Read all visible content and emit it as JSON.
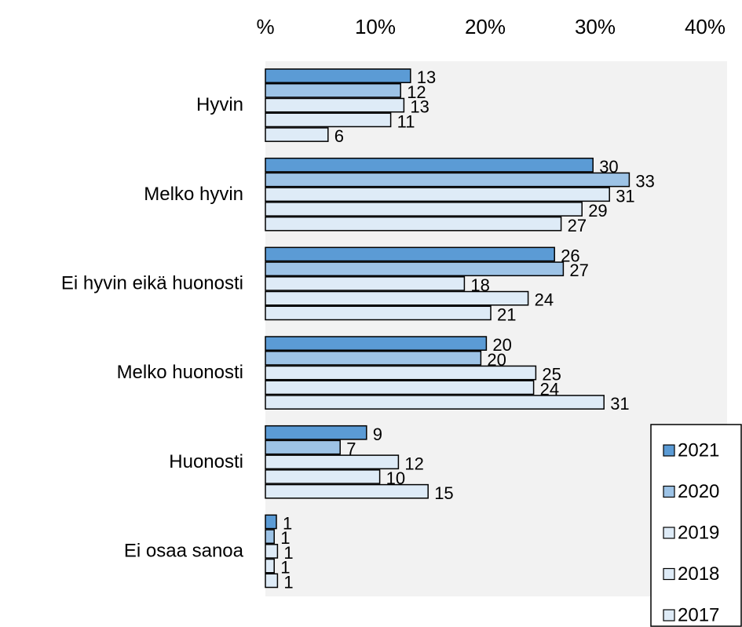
{
  "chart_data": {
    "type": "bar",
    "orientation": "horizontal",
    "categories": [
      "Hyvin",
      "Melko hyvin",
      "Ei hyvin eikä huonosti",
      "Melko huonosti",
      "Huonosti",
      "Ei osaa sanoa"
    ],
    "series": [
      {
        "name": "2021",
        "color": "#5b9bd5",
        "values": [
          13.2,
          29.8,
          26.3,
          20.1,
          9.2,
          1.0
        ],
        "value_labels": [
          "13",
          "30",
          "26",
          "20",
          "9",
          "1"
        ]
      },
      {
        "name": "2020",
        "color": "#9dc3e6",
        "values": [
          12.3,
          33.1,
          27.1,
          19.6,
          6.8,
          0.8
        ],
        "value_labels": [
          "12",
          "33",
          "27",
          "20",
          "7",
          "1"
        ]
      },
      {
        "name": "2019",
        "color": "#deebf7",
        "values": [
          12.6,
          31.3,
          18.1,
          24.6,
          12.1,
          1.1
        ],
        "value_labels": [
          "13",
          "31",
          "18",
          "25",
          "12",
          "1"
        ]
      },
      {
        "name": "2018",
        "color": "#deebf7",
        "values": [
          11.4,
          28.8,
          23.9,
          24.4,
          10.4,
          0.8
        ],
        "value_labels": [
          "11",
          "29",
          "24",
          "24",
          "10",
          "1"
        ]
      },
      {
        "name": "2017",
        "color": "#deebf7",
        "values": [
          5.7,
          26.9,
          20.5,
          30.8,
          14.8,
          1.1
        ],
        "value_labels": [
          "6",
          "27",
          "21",
          "31",
          "15",
          "1"
        ]
      }
    ],
    "xlim": [
      0,
      42
    ],
    "xticks": [
      {
        "value": 0,
        "label": "%"
      },
      {
        "value": 10,
        "label": "10%"
      },
      {
        "value": 20,
        "label": "20%"
      },
      {
        "value": 30,
        "label": "30%"
      },
      {
        "value": 40,
        "label": "40%"
      }
    ],
    "grid": false,
    "legend": "lower right",
    "plot_background": "#f2f2f2"
  }
}
